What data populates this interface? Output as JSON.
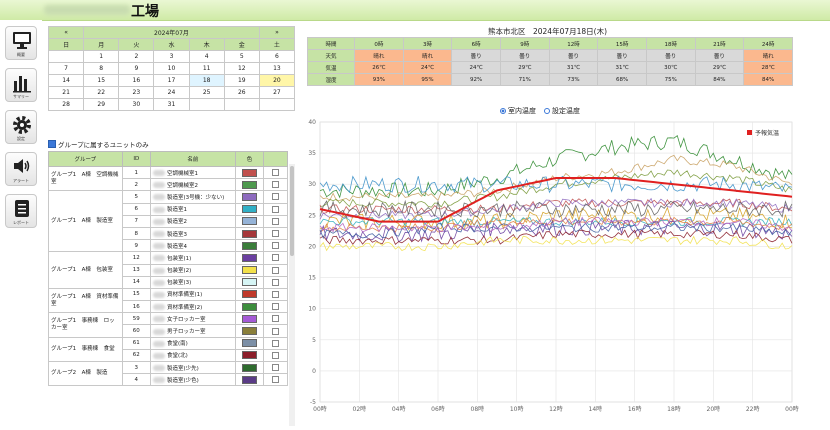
{
  "header": {
    "title": "工場"
  },
  "sidebar": [
    {
      "icon": "monitor-icon",
      "label": "概要"
    },
    {
      "icon": "bar-chart-icon",
      "label": "サマリー"
    },
    {
      "icon": "gear-icon",
      "label": "設定"
    },
    {
      "icon": "speaker-icon",
      "label": "アラート"
    },
    {
      "icon": "document-icon",
      "label": "レポート"
    }
  ],
  "calendar": {
    "prev": "«",
    "next": "»",
    "month": "2024年07月",
    "weekdays": [
      "日",
      "月",
      "火",
      "水",
      "木",
      "金",
      "土"
    ],
    "weeks": [
      [
        "",
        "1",
        "2",
        "3",
        "4",
        "5",
        "6"
      ],
      [
        "7",
        "8",
        "9",
        "10",
        "11",
        "12",
        "13"
      ],
      [
        "14",
        "15",
        "16",
        "17",
        "18",
        "19",
        "20"
      ],
      [
        "21",
        "22",
        "23",
        "24",
        "25",
        "26",
        "27"
      ],
      [
        "28",
        "29",
        "30",
        "31",
        "",
        "",
        ""
      ]
    ],
    "today": "18",
    "selected": "20"
  },
  "group_filter_label": "グループに属するユニットのみ",
  "group_table": {
    "headers": [
      "グループ",
      "ID",
      "名前",
      "色",
      ""
    ],
    "groups": [
      {
        "name": "グループ1　A棟　空調機械室",
        "rows": [
          {
            "id": "1",
            "name": "空調機械室1",
            "color": "#c0504d"
          },
          {
            "id": "2",
            "name": "空調機械室2",
            "color": "#4f9a4f"
          }
        ]
      },
      {
        "name": "グループ1　A棟　製造室",
        "rows": [
          {
            "id": "5",
            "name": "製造室(3号機：少ない)",
            "color": "#8e6bbf"
          },
          {
            "id": "6",
            "name": "製造室1",
            "color": "#31b0c6"
          },
          {
            "id": "7",
            "name": "製造室2",
            "color": "#95b3d7"
          },
          {
            "id": "8",
            "name": "製造室3",
            "color": "#a5373a"
          },
          {
            "id": "9",
            "name": "製造室4",
            "color": "#3a7d3a"
          }
        ]
      },
      {
        "name": "グループ1　A棟　包装室",
        "rows": [
          {
            "id": "12",
            "name": "包装室(1)",
            "color": "#6a3fa0"
          },
          {
            "id": "13",
            "name": "包装室(2)",
            "color": "#f2e14b"
          },
          {
            "id": "14",
            "name": "包装室(3)",
            "color": "#d6f5f5"
          }
        ]
      },
      {
        "name": "グループ1　A棟　資材準備室",
        "rows": [
          {
            "id": "15",
            "name": "資材準備室(1)",
            "color": "#c0392b"
          },
          {
            "id": "16",
            "name": "資材準備室(2)",
            "color": "#3c8d3c"
          }
        ]
      },
      {
        "name": "グループ1　事務棟　ロッカー室",
        "rows": [
          {
            "id": "59",
            "name": "女子ロッカー室",
            "color": "#a55ad6"
          },
          {
            "id": "60",
            "name": "男子ロッカー室",
            "color": "#8a7f3a"
          }
        ]
      },
      {
        "name": "グループ1　事務棟　食堂",
        "rows": [
          {
            "id": "61",
            "name": "食堂(南)",
            "color": "#7c8fa6"
          },
          {
            "id": "62",
            "name": "食堂(北)",
            "color": "#8b1e2a"
          }
        ]
      },
      {
        "name": "グループ2　A棟　製造",
        "rows": [
          {
            "id": "3",
            "name": "製造室(少先)",
            "color": "#2e6b2e"
          },
          {
            "id": "4",
            "name": "製造室(少色)",
            "color": "#5a3b86"
          }
        ]
      }
    ]
  },
  "weather": {
    "title": "熊本市北区　2024年07月18日(木)",
    "labels": [
      "時間",
      "天気",
      "気温",
      "湿度"
    ],
    "times": [
      "0時",
      "3時",
      "6時",
      "9時",
      "12時",
      "15時",
      "18時",
      "21時",
      "24時"
    ],
    "weather": [
      "晴れ",
      "晴れ",
      "曇り",
      "曇り",
      "曇り",
      "曇り",
      "曇り",
      "曇り",
      "晴れ"
    ],
    "temps": [
      "26℃",
      "24℃",
      "24℃",
      "29℃",
      "31℃",
      "31℃",
      "30℃",
      "29℃",
      "28℃"
    ],
    "humidity": [
      "93%",
      "95%",
      "92%",
      "71%",
      "73%",
      "68%",
      "75%",
      "84%",
      "84%"
    ],
    "highlight": [
      true,
      true,
      false,
      false,
      false,
      false,
      false,
      false,
      true
    ]
  },
  "chart_options": {
    "room_temp": "室内温度",
    "set_temp": "設定温度",
    "selected": "room_temp"
  },
  "chart_data": {
    "type": "line",
    "ylim": [
      -5,
      40
    ],
    "yticks": [
      -5,
      0,
      5,
      10,
      15,
      20,
      25,
      30,
      35,
      40
    ],
    "xticks": [
      "00時",
      "02時",
      "04時",
      "06時",
      "08時",
      "10時",
      "12時",
      "14時",
      "16時",
      "18時",
      "20時",
      "22時",
      "00時"
    ],
    "forecast_label": "予報気温",
    "forecast": {
      "x": [
        0,
        3,
        6,
        9,
        12,
        15,
        18,
        21,
        24
      ],
      "y": [
        26,
        24,
        24,
        29,
        31,
        31,
        30,
        29,
        28
      ],
      "color": "#e02020"
    },
    "series": [
      {
        "color": "#2d8a2d",
        "base": [
          29,
          29,
          29,
          31,
          34,
          36,
          37,
          34,
          31
        ]
      },
      {
        "color": "#c8a060",
        "base": [
          28,
          28,
          28,
          29,
          31,
          32,
          34,
          33,
          30
        ]
      },
      {
        "color": "#7a9a3a",
        "base": [
          27,
          27,
          27,
          28,
          30,
          31,
          32,
          31,
          29
        ]
      },
      {
        "color": "#3a8fc8",
        "base": [
          30,
          30,
          30,
          30,
          30,
          30,
          30,
          30,
          29
        ]
      },
      {
        "color": "#c05050",
        "base": [
          26,
          26,
          26,
          26,
          27,
          27,
          27,
          27,
          26
        ]
      },
      {
        "color": "#8e6bbf",
        "base": [
          25,
          25,
          25,
          26,
          27,
          27,
          27,
          27,
          26
        ]
      },
      {
        "color": "#d4a020",
        "base": [
          24,
          24,
          24,
          24,
          25,
          25,
          25,
          25,
          24
        ]
      },
      {
        "color": "#30b0c0",
        "base": [
          24,
          24,
          24,
          24,
          24,
          24,
          24,
          24,
          24
        ]
      },
      {
        "color": "#e08040",
        "base": [
          23,
          23,
          23,
          24,
          24,
          24,
          24,
          24,
          23
        ]
      },
      {
        "color": "#6a3fa0",
        "base": [
          22,
          22,
          22,
          23,
          23,
          23,
          23,
          23,
          22
        ]
      },
      {
        "color": "#8b1e2a",
        "base": [
          21,
          21,
          21,
          21,
          22,
          22,
          22,
          22,
          21
        ]
      },
      {
        "color": "#f2e14b",
        "base": [
          20,
          20,
          20,
          21,
          21,
          21,
          21,
          21,
          20
        ]
      },
      {
        "color": "#606060",
        "base": [
          26,
          26,
          26,
          26,
          26,
          26,
          26,
          26,
          26
        ]
      },
      {
        "color": "#3c5ca0",
        "base": [
          22,
          22,
          23,
          23,
          23,
          23,
          23,
          23,
          22
        ]
      },
      {
        "color": "#b060c0",
        "base": [
          23,
          23,
          23,
          23,
          24,
          24,
          24,
          24,
          23
        ]
      }
    ]
  }
}
